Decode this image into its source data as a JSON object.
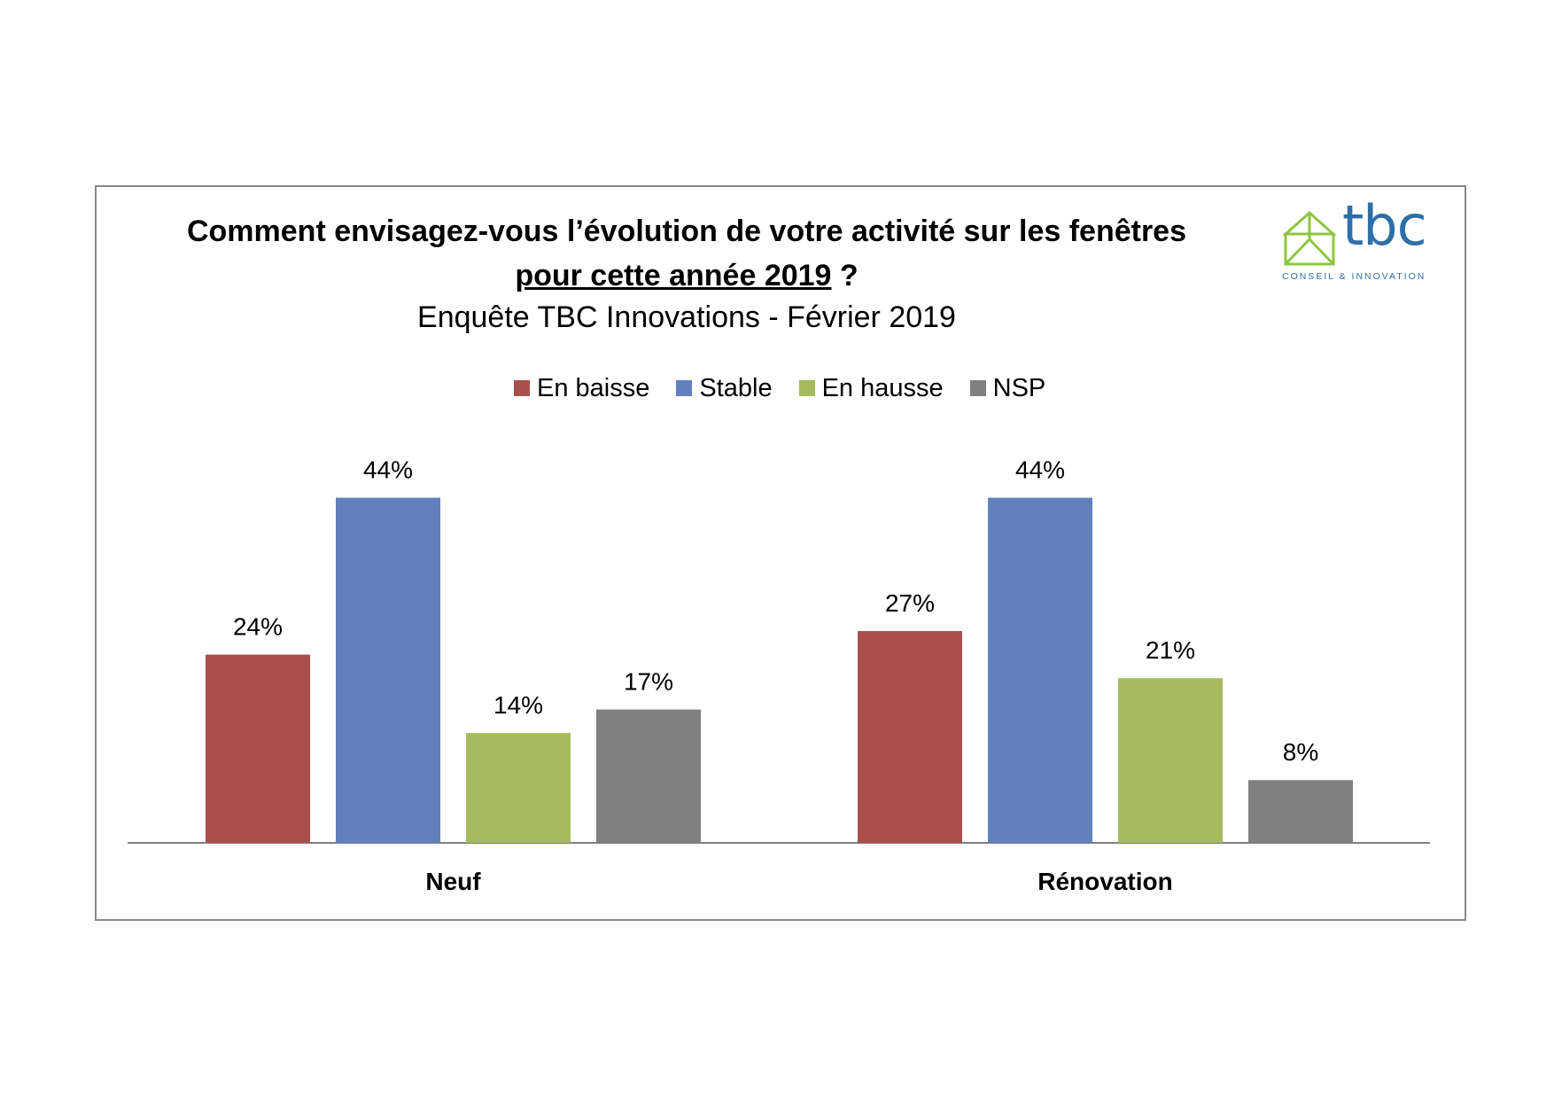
{
  "chart_data": {
    "type": "bar",
    "title_line1": "Comment envisagez-vous l’évolution de votre activité sur les fenêtres",
    "title_line2_underlined": "pour cette année 2019",
    "title_line2_rest": " ?",
    "subtitle": "Enquête TBC Innovations - Février 2019",
    "categories": [
      "Neuf",
      "Rénovation"
    ],
    "series": [
      {
        "name": "En baisse",
        "color": "#a9504d",
        "values": [
          24,
          27
        ]
      },
      {
        "name": "Stable",
        "color": "#6180bd",
        "values": [
          44,
          44
        ]
      },
      {
        "name": "En hausse",
        "color": "#a4bc5d",
        "values": [
          14,
          21
        ]
      },
      {
        "name": "NSP",
        "color": "#808080",
        "values": [
          17,
          8
        ]
      }
    ],
    "value_suffix": "%",
    "ylim": [
      0,
      50
    ],
    "legend_position": "top",
    "grid": false
  },
  "logo": {
    "name": "tbc",
    "tagline": "CONSEIL & INNOVATION",
    "color": "#2e6fa8",
    "icon_color": "#8cc63f"
  }
}
